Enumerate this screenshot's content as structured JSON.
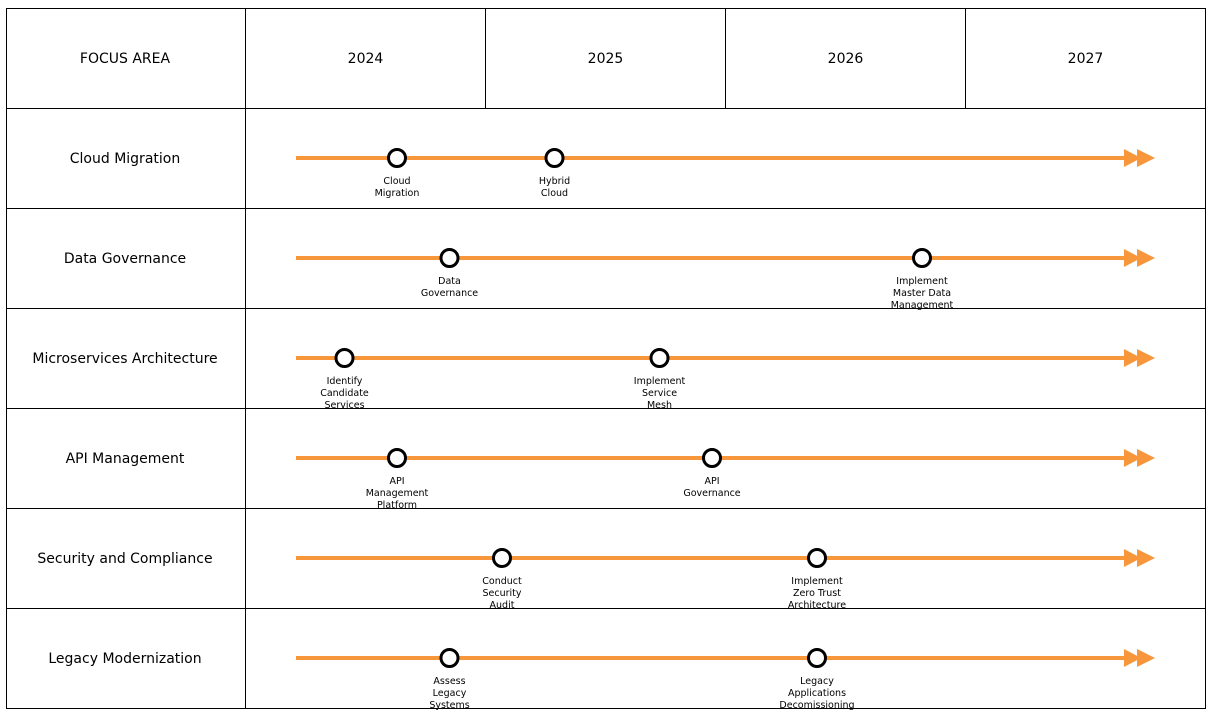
{
  "header": {
    "focus_label": "FOCUS AREA",
    "years": [
      "2024",
      "2025",
      "2026",
      "2027"
    ]
  },
  "colors": {
    "timeline": "#f7963a",
    "milestone_stroke": "#000000",
    "milestone_fill": "#ffffff",
    "grid": "#000000"
  },
  "rows": [
    {
      "label": "Cloud Migration",
      "milestones": [
        {
          "lines": [
            "Cloud",
            "Migration"
          ],
          "position": 0.125
        },
        {
          "lines": [
            "Hybrid",
            "Cloud"
          ],
          "position": 0.3125
        }
      ]
    },
    {
      "label": "Data Governance",
      "milestones": [
        {
          "lines": [
            "Data",
            "Governance"
          ],
          "position": 0.1875
        },
        {
          "lines": [
            "Implement",
            "Master Data",
            "Management"
          ],
          "position": 0.75
        }
      ]
    },
    {
      "label": "Microservices Architecture",
      "milestones": [
        {
          "lines": [
            "Identify",
            "Candidate",
            "Services"
          ],
          "position": 0.0625
        },
        {
          "lines": [
            "Implement",
            "Service",
            "Mesh"
          ],
          "position": 0.4375
        }
      ]
    },
    {
      "label": "API Management",
      "milestones": [
        {
          "lines": [
            "API",
            "Management",
            "Platform"
          ],
          "position": 0.125
        },
        {
          "lines": [
            "API",
            "Governance"
          ],
          "position": 0.5
        }
      ]
    },
    {
      "label": "Security and Compliance",
      "milestones": [
        {
          "lines": [
            "Conduct",
            "Security",
            "Audit"
          ],
          "position": 0.25
        },
        {
          "lines": [
            "Implement",
            "Zero Trust",
            "Architecture"
          ],
          "position": 0.625
        }
      ]
    },
    {
      "label": "Legacy Modernization",
      "milestones": [
        {
          "lines": [
            "Assess",
            "Legacy",
            "Systems"
          ],
          "position": 0.1875
        },
        {
          "lines": [
            "Legacy",
            "Applications",
            "Decomissioning"
          ],
          "position": 0.625
        }
      ]
    }
  ]
}
